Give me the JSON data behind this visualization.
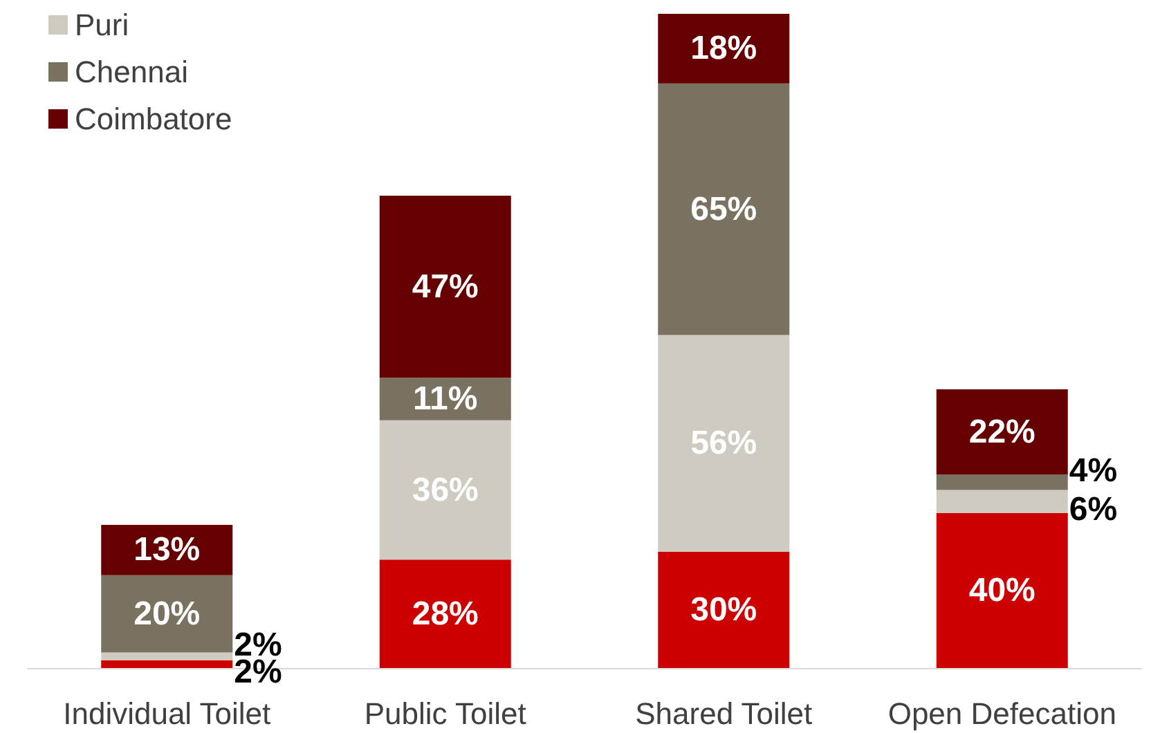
{
  "chart_data": {
    "type": "bar",
    "stacked": true,
    "legend": "top left",
    "categories": [
      "Individual Toilet",
      "Public Toilet",
      "Shared Toilet",
      "Open Defecation"
    ],
    "series": [
      {
        "color": "#cc0000",
        "values": [
          2,
          28,
          30,
          40
        ],
        "value_labels": [
          "2%",
          "28%",
          "30%",
          "40%"
        ]
      },
      {
        "name": "Puri",
        "color": "#d0cbc0",
        "values": [
          2,
          36,
          56,
          6
        ],
        "value_labels": [
          "2%",
          "36%",
          "56%",
          "6%"
        ]
      },
      {
        "name": "Chennai",
        "color": "#7a7260",
        "values": [
          20,
          11,
          65,
          4
        ],
        "value_labels": [
          "20%",
          "11%",
          "65%",
          "4%"
        ]
      },
      {
        "name": "Coimbatore",
        "color": "#660000",
        "values": [
          13,
          47,
          18,
          22
        ],
        "value_labels": [
          "13%",
          "47%",
          "18%",
          "22%"
        ]
      }
    ]
  }
}
